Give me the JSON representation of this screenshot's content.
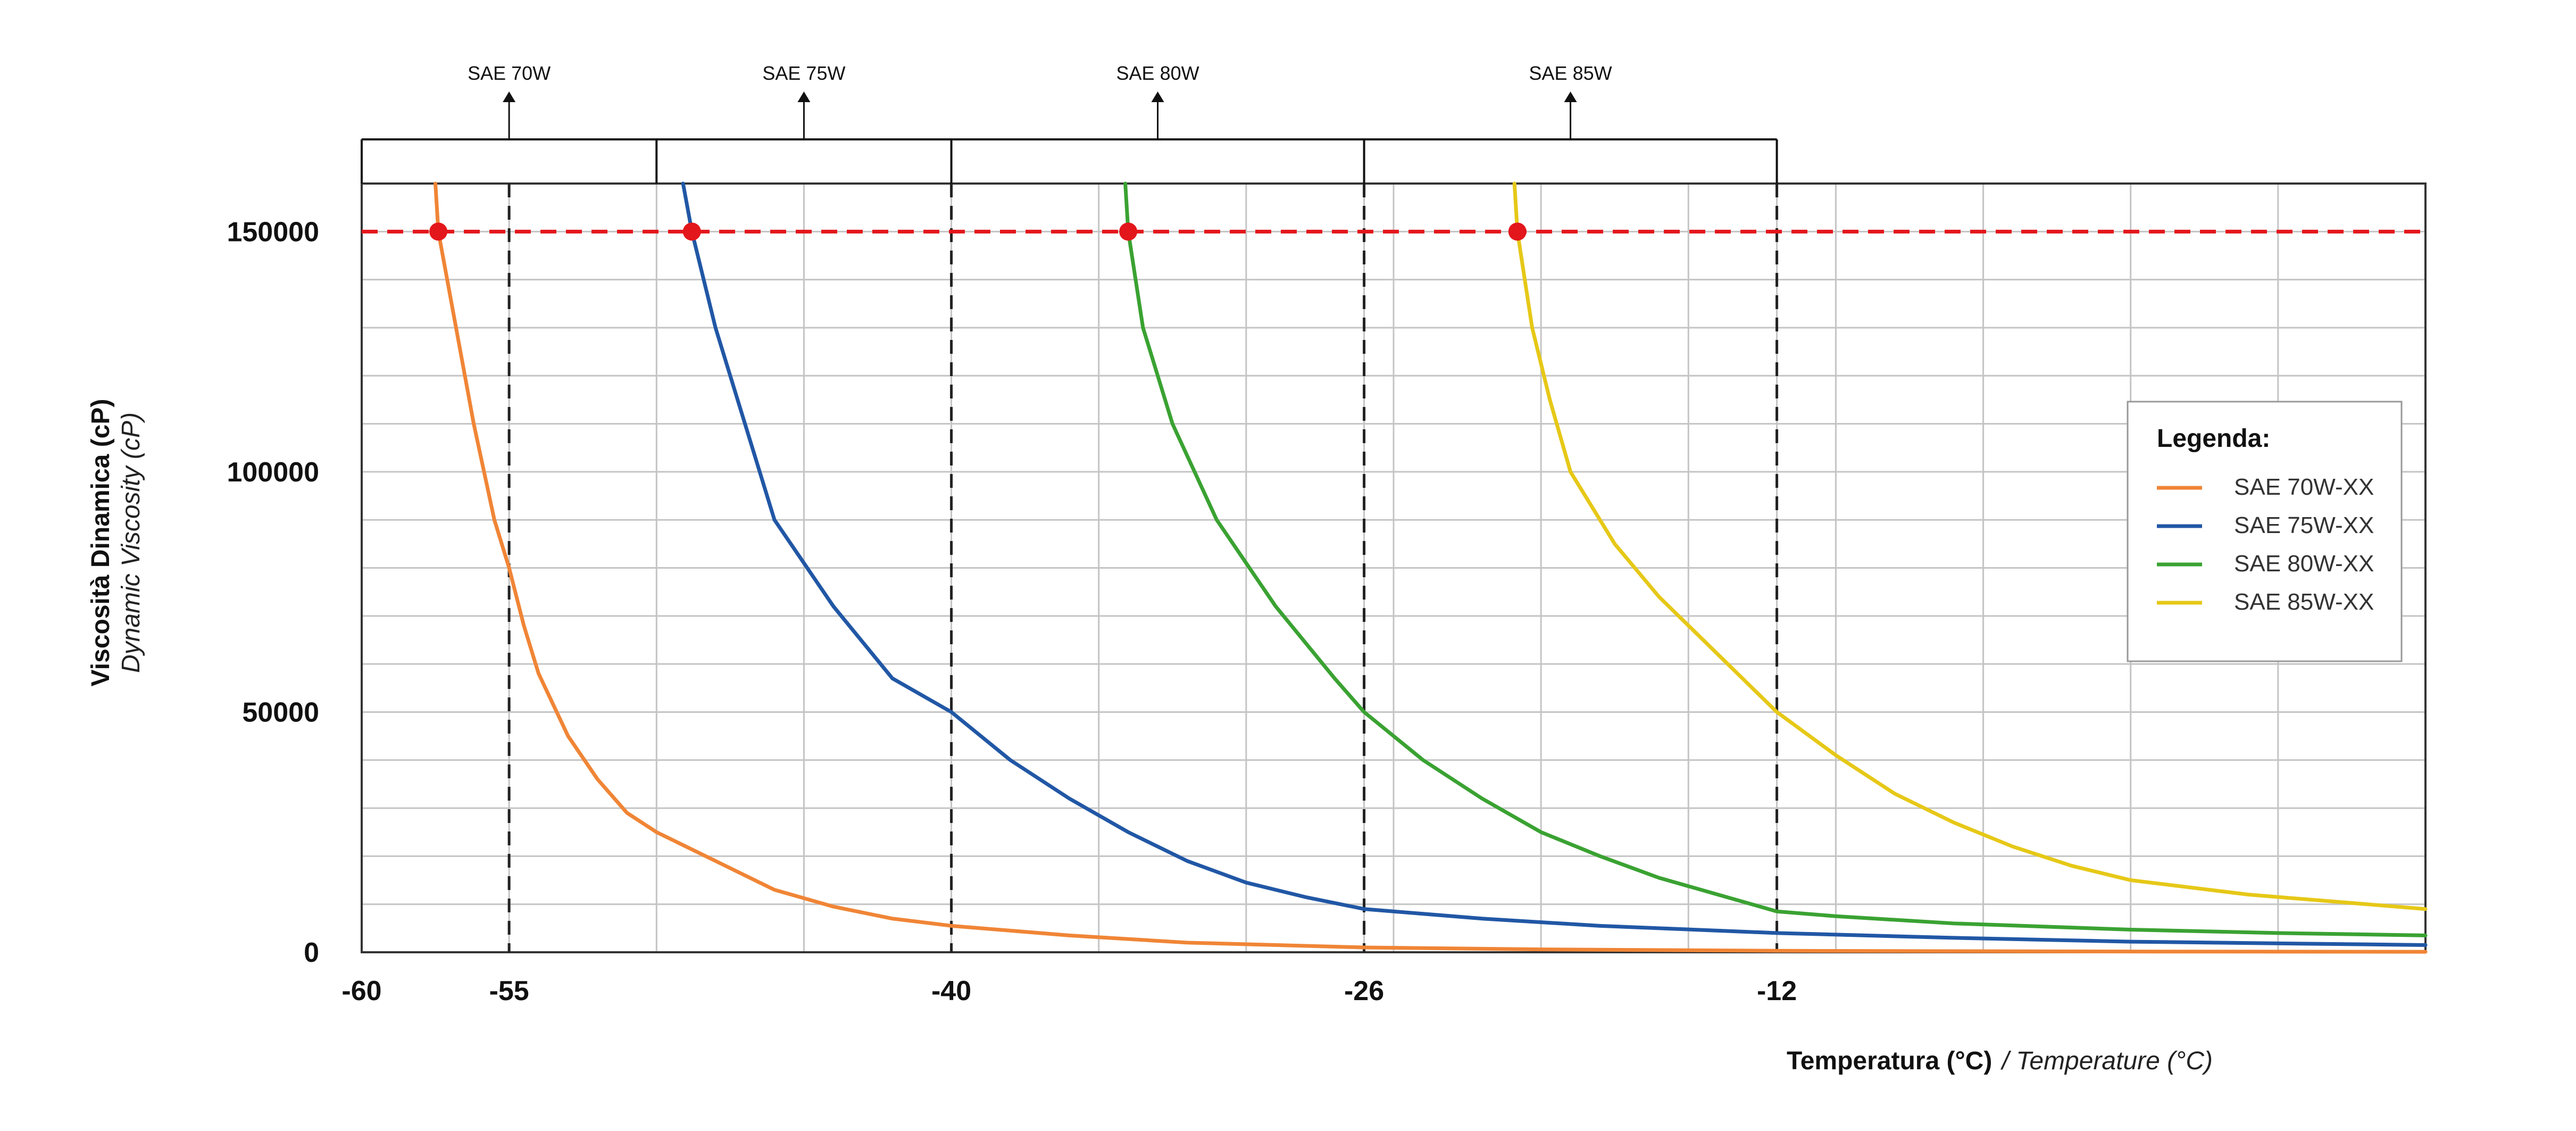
{
  "chart_data": {
    "type": "line",
    "title": "",
    "ylabel": "Viscosità Dinamica (cP)",
    "ylabel_sub": "Dynamic Viscosity (cP)",
    "xlabel": "Temperatura (°C)",
    "xlabel_sub": "/ Temperature (°C)",
    "xlim": [
      -60,
      10
    ],
    "ylim": [
      0,
      160000
    ],
    "x_ticks": [
      -60,
      -55,
      -40,
      -26,
      -12
    ],
    "x_tick_labels": [
      "-60",
      "-55",
      "-40",
      "-26",
      "-12"
    ],
    "y_ticks": [
      0,
      50000,
      100000,
      150000
    ],
    "y_tick_labels": [
      "0",
      "50000",
      "100000",
      "150000"
    ],
    "x_minor_grid": [
      -60,
      -55,
      -50,
      -45,
      -40,
      -35,
      -30,
      -26,
      -25,
      -20,
      -15,
      -12,
      -10,
      -5,
      0,
      5,
      10
    ],
    "y_minor_grid": [
      0,
      10000,
      20000,
      30000,
      40000,
      50000,
      60000,
      70000,
      80000,
      90000,
      100000,
      110000,
      120000,
      130000,
      140000,
      150000,
      160000
    ],
    "grid": true,
    "reference_line": {
      "y": 150000,
      "color": "#e3161b",
      "style": "dashed"
    },
    "limit_lines": [
      -55,
      -40,
      -26,
      -12
    ],
    "band_edges": [
      -60,
      -50,
      -40,
      -26,
      -12
    ],
    "grade_labels": [
      {
        "label": "SAE 70W",
        "x": -55
      },
      {
        "label": "SAE 75W",
        "x": -45
      },
      {
        "label": "SAE 80W",
        "x": -33
      },
      {
        "label": "SAE 85W",
        "x": -19
      }
    ],
    "legend": {
      "title": "Legenda:",
      "position": "right"
    },
    "series": [
      {
        "name": "SAE 70W-XX",
        "color": "#f08536",
        "points": [
          [
            -57.5,
            160000
          ],
          [
            -57.4,
            150000
          ],
          [
            -56.8,
            130000
          ],
          [
            -56.2,
            110000
          ],
          [
            -55.5,
            90000
          ],
          [
            -55,
            80000
          ],
          [
            -54.5,
            68000
          ],
          [
            -54,
            58000
          ],
          [
            -53,
            45000
          ],
          [
            -52,
            36000
          ],
          [
            -51,
            29000
          ],
          [
            -50,
            25000
          ],
          [
            -48,
            19000
          ],
          [
            -46,
            13000
          ],
          [
            -44,
            9500
          ],
          [
            -42,
            7000
          ],
          [
            -40,
            5500
          ],
          [
            -36,
            3500
          ],
          [
            -32,
            2000
          ],
          [
            -26,
            1000
          ],
          [
            -20,
            600
          ],
          [
            -12,
            300
          ],
          [
            0,
            150
          ],
          [
            10,
            100
          ]
        ],
        "marker": {
          "x": -57.4,
          "y": 150000
        }
      },
      {
        "name": "SAE 75W-XX",
        "color": "#2157a5",
        "points": [
          [
            -49.1,
            160000
          ],
          [
            -48.8,
            150000
          ],
          [
            -48,
            130000
          ],
          [
            -47,
            110000
          ],
          [
            -46,
            90000
          ],
          [
            -44,
            72000
          ],
          [
            -42,
            57000
          ],
          [
            -40,
            50000
          ],
          [
            -38,
            40000
          ],
          [
            -36,
            32000
          ],
          [
            -34,
            25000
          ],
          [
            -32,
            19000
          ],
          [
            -30,
            14500
          ],
          [
            -28,
            11500
          ],
          [
            -26,
            9000
          ],
          [
            -22,
            7000
          ],
          [
            -18,
            5500
          ],
          [
            -12,
            4000
          ],
          [
            -6,
            3000
          ],
          [
            0,
            2200
          ],
          [
            10,
            1500
          ]
        ],
        "marker": {
          "x": -48.8,
          "y": 150000
        }
      },
      {
        "name": "SAE 80W-XX",
        "color": "#3aa232",
        "points": [
          [
            -34.1,
            160000
          ],
          [
            -34,
            150000
          ],
          [
            -33.5,
            130000
          ],
          [
            -32.5,
            110000
          ],
          [
            -31,
            90000
          ],
          [
            -29,
            72000
          ],
          [
            -27,
            57000
          ],
          [
            -26,
            50000
          ],
          [
            -24,
            40000
          ],
          [
            -22,
            32000
          ],
          [
            -20,
            25000
          ],
          [
            -18,
            20000
          ],
          [
            -16,
            15500
          ],
          [
            -14,
            12000
          ],
          [
            -12,
            8500
          ],
          [
            -10,
            7500
          ],
          [
            -6,
            6000
          ],
          [
            0,
            4700
          ],
          [
            5,
            4000
          ],
          [
            10,
            3500
          ]
        ],
        "marker": {
          "x": -34,
          "y": 150000
        }
      },
      {
        "name": "SAE 85W-XX",
        "color": "#e6c817",
        "points": [
          [
            -20.9,
            160000
          ],
          [
            -20.8,
            150000
          ],
          [
            -20.3,
            130000
          ],
          [
            -19.7,
            115000
          ],
          [
            -19,
            100000
          ],
          [
            -17.5,
            85000
          ],
          [
            -16,
            74000
          ],
          [
            -14,
            62000
          ],
          [
            -12,
            50000
          ],
          [
            -10,
            41000
          ],
          [
            -8,
            33000
          ],
          [
            -6,
            27000
          ],
          [
            -4,
            22000
          ],
          [
            -2,
            18000
          ],
          [
            0,
            15000
          ],
          [
            4,
            12000
          ],
          [
            8,
            10000
          ],
          [
            10,
            9000
          ]
        ],
        "marker": {
          "x": -20.8,
          "y": 150000
        }
      }
    ]
  }
}
